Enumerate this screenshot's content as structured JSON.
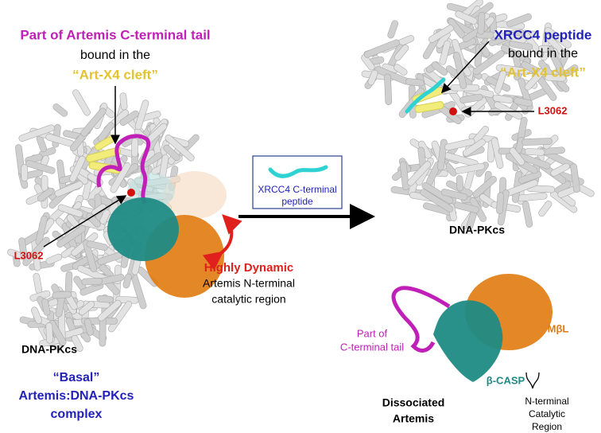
{
  "left_panel": {
    "tail_label": [
      "Part of Artemis C-terminal tail",
      "bound in the",
      "“Art-X4 cleft”"
    ],
    "residue_label": "L3062",
    "dynamic_label": [
      "Highly Dynamic",
      "Artemis N-terminal",
      "catalytic region"
    ],
    "protein_label": "DNA-PKcs",
    "complex_label": [
      "“Basal”",
      "Artemis:DNA-PKcs",
      "complex"
    ]
  },
  "inset": {
    "label": [
      "XRCC4 C-terminal",
      "peptide"
    ]
  },
  "right_panel": {
    "peptide_label": [
      "XRCC4 peptide",
      "bound in the",
      "“Art-X4 cleft”"
    ],
    "residue_label": "L3062",
    "protein_label": "DNA-PKcs"
  },
  "artemis_panel": {
    "tail_label": [
      "Part of",
      "C-terminal tail"
    ],
    "mbl_label": "MβL",
    "bcasp_label": "β-CASP",
    "name_label": [
      "Dissociated",
      "Artemis"
    ],
    "region_label": [
      "N-terminal",
      "Catalytic",
      "Region"
    ]
  }
}
